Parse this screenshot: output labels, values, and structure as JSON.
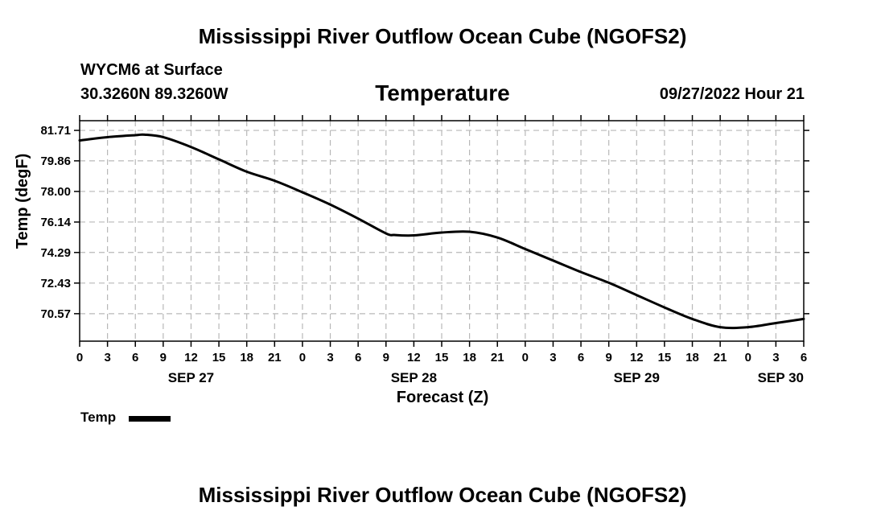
{
  "header": {
    "title": "Mississippi River Outflow Ocean Cube (NGOFS2)",
    "station": "WYCM6 at Surface",
    "coords": "30.3260N  89.3260W",
    "variable": "Temperature",
    "datetime": "09/27/2022 Hour 21"
  },
  "footer": {
    "title": "Mississippi River Outflow Ocean Cube (NGOFS2)"
  },
  "legend": {
    "label": "Temp"
  },
  "chart_data": {
    "type": "line",
    "title": "Temperature",
    "xlabel": "Forecast (Z)",
    "ylabel": "Temp (degF)",
    "xlim": [
      0,
      78
    ],
    "ylim": [
      68.9,
      82.3
    ],
    "grid": true,
    "x_ticks": [
      0,
      3,
      6,
      9,
      12,
      15,
      18,
      21,
      24,
      27,
      30,
      33,
      36,
      39,
      42,
      45,
      48,
      51,
      54,
      57,
      60,
      63,
      66,
      69,
      72,
      75,
      78
    ],
    "x_tick_labels": [
      "0",
      "3",
      "6",
      "9",
      "12",
      "15",
      "18",
      "21",
      "0",
      "3",
      "6",
      "9",
      "12",
      "15",
      "18",
      "21",
      "0",
      "3",
      "6",
      "9",
      "12",
      "15",
      "18",
      "21",
      "0",
      "3",
      "6"
    ],
    "date_labels": [
      {
        "x": 12,
        "label": "SEP 27"
      },
      {
        "x": 36,
        "label": "SEP 28"
      },
      {
        "x": 60,
        "label": "SEP 29"
      },
      {
        "x": 78,
        "label": "SEP 30"
      }
    ],
    "y_ticks": [
      81.71,
      79.86,
      78.0,
      76.14,
      74.29,
      72.43,
      70.57
    ],
    "y_tick_labels": [
      "81.71",
      "79.86",
      "78.00",
      "76.14",
      "74.29",
      "72.43",
      "70.57"
    ],
    "series": [
      {
        "name": "Temp",
        "x": [
          0,
          3,
          6,
          7,
          9,
          12,
          15,
          18,
          21,
          24,
          27,
          30,
          33,
          34,
          36,
          39,
          42,
          45,
          48,
          51,
          54,
          57,
          60,
          63,
          66,
          69,
          72,
          75,
          78
        ],
        "values": [
          81.1,
          81.3,
          81.42,
          81.45,
          81.3,
          80.7,
          79.95,
          79.2,
          78.65,
          77.95,
          77.2,
          76.35,
          75.45,
          75.35,
          75.33,
          75.5,
          75.55,
          75.2,
          74.5,
          73.8,
          73.1,
          72.45,
          71.7,
          70.95,
          70.25,
          69.75,
          69.75,
          70.0,
          70.25
        ]
      }
    ]
  }
}
